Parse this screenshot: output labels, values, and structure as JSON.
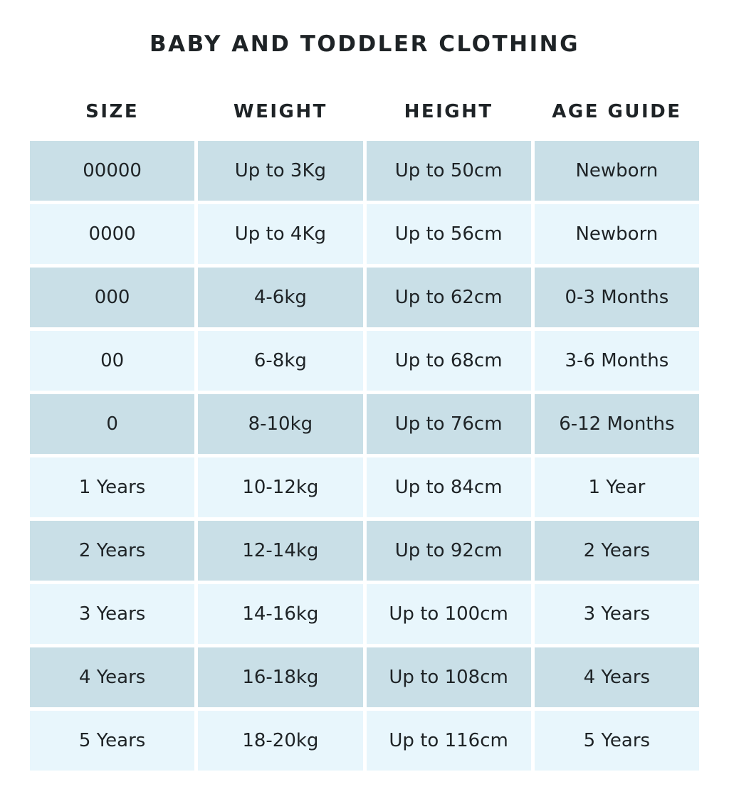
{
  "title": "BABY AND TODDLER CLOTHING",
  "colors": {
    "row_dark": "#c9dfe7",
    "row_light": "#e8f6fc"
  },
  "headers": [
    "SIZE",
    "WEIGHT",
    "HEIGHT",
    "AGE GUIDE"
  ],
  "rows": [
    [
      "00000",
      "Up to 3Kg",
      "Up to 50cm",
      "Newborn"
    ],
    [
      "0000",
      "Up to 4Kg",
      "Up to 56cm",
      "Newborn"
    ],
    [
      "000",
      "4-6kg",
      "Up to 62cm",
      "0-3 Months"
    ],
    [
      "00",
      "6-8kg",
      "Up to 68cm",
      "3-6 Months"
    ],
    [
      "0",
      "8-10kg",
      "Up to 76cm",
      "6-12 Months"
    ],
    [
      "1 Years",
      "10-12kg",
      "Up to 84cm",
      "1 Year"
    ],
    [
      "2 Years",
      "12-14kg",
      "Up to 92cm",
      "2 Years"
    ],
    [
      "3 Years",
      "14-16kg",
      "Up to 100cm",
      "3 Years"
    ],
    [
      "4 Years",
      "16-18kg",
      "Up to 108cm",
      "4 Years"
    ],
    [
      "5 Years",
      "18-20kg",
      "Up to 116cm",
      "5 Years"
    ]
  ]
}
